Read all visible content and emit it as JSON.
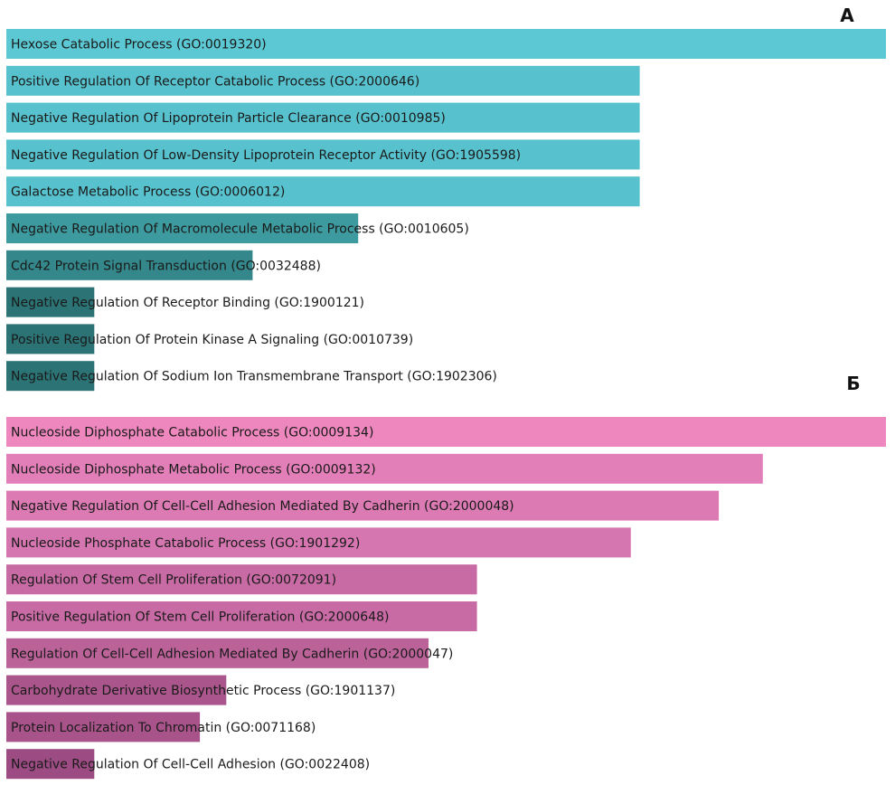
{
  "chart_data": [
    {
      "type": "bar",
      "orientation": "horizontal",
      "panel_label": "A",
      "value_scale": "relative (longest bar = 1.0), read from bar lengths; no axis printed",
      "xlim": [
        0,
        1
      ],
      "categories": [
        "Hexose Catabolic Process (GO:0019320)",
        "Positive Regulation Of Receptor Catabolic Process (GO:2000646)",
        "Negative Regulation Of Lipoprotein Particle Clearance (GO:0010985)",
        "Negative Regulation Of Low-Density Lipoprotein Receptor Activity (GO:1905598)",
        "Galactose Metabolic Process (GO:0006012)",
        "Negative Regulation Of Macromolecule Metabolic Process (GO:0010605)",
        "Cdc42 Protein Signal Transduction (GO:0032488)",
        "Negative Regulation Of Receptor Binding (GO:1900121)",
        "Positive Regulation Of Protein Kinase A Signaling (GO:0010739)",
        "Negative Regulation Of Sodium Ion Transmembrane Transport (GO:1902306)"
      ],
      "values": [
        1.0,
        0.72,
        0.72,
        0.72,
        0.72,
        0.4,
        0.28,
        0.1,
        0.1,
        0.1
      ],
      "colors": [
        "#5bc8d3",
        "#57c2cd",
        "#57c2cd",
        "#57c2cd",
        "#57c2cd",
        "#3d9a9e",
        "#34878a",
        "#2b7374",
        "#2b7374",
        "#2b7374"
      ]
    },
    {
      "type": "bar",
      "orientation": "horizontal",
      "panel_label": "Б",
      "value_scale": "relative (longest bar = 1.0), read from bar lengths; no axis printed",
      "xlim": [
        0,
        1
      ],
      "categories": [
        "Nucleoside Diphosphate Catabolic Process (GO:0009134)",
        "Nucleoside Diphosphate Metabolic Process (GO:0009132)",
        "Negative Regulation Of Cell-Cell Adhesion Mediated By Cadherin (GO:2000048)",
        "Nucleoside Phosphate Catabolic Process (GO:1901292)",
        "Regulation Of Stem Cell Proliferation (GO:0072091)",
        "Positive Regulation Of Stem Cell Proliferation (GO:2000648)",
        "Regulation Of Cell-Cell Adhesion Mediated By Cadherin (GO:2000047)",
        "Carbohydrate Derivative Biosynthetic Process (GO:1901137)",
        "Protein Localization To Chromatin (GO:0071168)",
        "Negative Regulation Of Cell-Cell Adhesion (GO:0022408)"
      ],
      "values": [
        1.0,
        0.86,
        0.81,
        0.71,
        0.535,
        0.535,
        0.48,
        0.25,
        0.22,
        0.1
      ],
      "colors": [
        "#ee87bd",
        "#e37fb8",
        "#dc7ab3",
        "#d676b0",
        "#c86aa4",
        "#c86aa4",
        "#bb6299",
        "#aa558b",
        "#a8548a",
        "#9d4c83"
      ]
    }
  ]
}
